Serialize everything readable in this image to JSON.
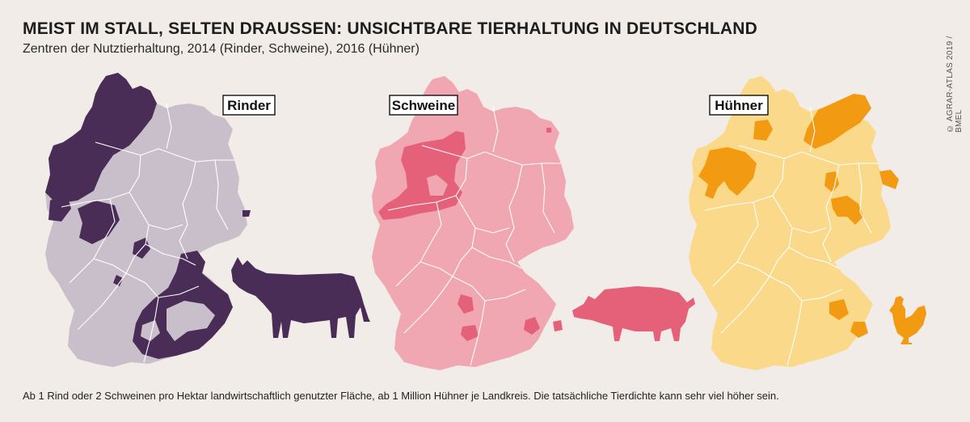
{
  "title": "MEIST IM STALL, SELTEN DRAUSSEN: UNSICHTBARE TIERHALTUNG IN DEUTSCHLAND",
  "subtitle": "Zentren der Nutztierhaltung, 2014 (Rinder, Schweine), 2016 (Hühner)",
  "credit": "© AGRAR-ATLAS 2019 / BMEL",
  "footnote": "Ab 1 Rind oder 2 Schweinen pro Hektar landwirtschaftlich genutzter Fläche, ab 1 Million Hühner je Landkreis. Die tatsächliche Tierdichte kann sehr viel höher sein.",
  "maps": [
    {
      "label": "Rinder",
      "base_color": "#c9bfca",
      "highlight_color": "#4a2d57",
      "icon": "cow-icon"
    },
    {
      "label": "Schweine",
      "base_color": "#f0a7b1",
      "highlight_color": "#e56179",
      "icon": "pig-icon"
    },
    {
      "label": "Hühner",
      "base_color": "#fbd98a",
      "highlight_color": "#f29a11",
      "icon": "chicken-icon"
    }
  ]
}
